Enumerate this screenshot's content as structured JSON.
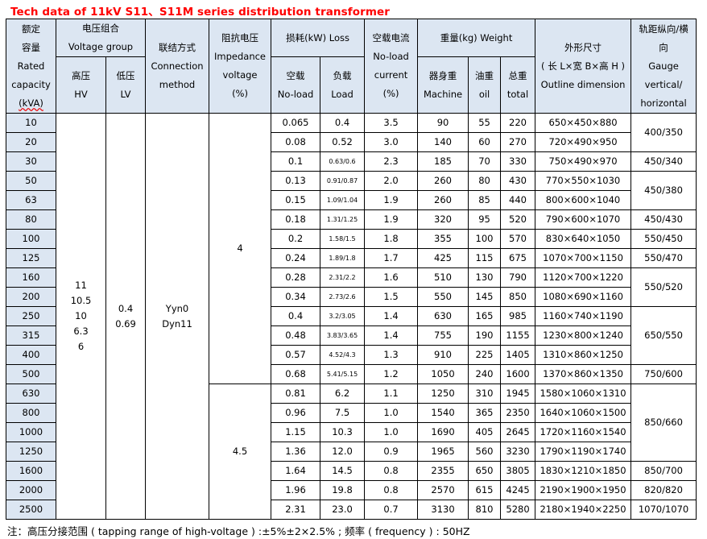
{
  "title": "Tech data of 11kV S11、S11M series distribution transformer",
  "header": {
    "capacity": [
      "额定",
      "容量",
      "Rated",
      "capacity",
      "(kVA)"
    ],
    "voltage_group": [
      "电压组合",
      "Voltage group"
    ],
    "hv": [
      "高压",
      "HV"
    ],
    "lv": [
      "低压",
      "LV"
    ],
    "connection": [
      "联结方式",
      "Connection",
      "method"
    ],
    "impedance": [
      "阻抗电压",
      "Impedance",
      "voltage",
      "(%)"
    ],
    "loss": [
      "损耗(kW) Loss"
    ],
    "noload_loss": [
      "空载",
      "No-load"
    ],
    "load_loss": [
      "负载",
      "Load"
    ],
    "noload_current": [
      "空载电流",
      "No-load",
      "current",
      "(%)"
    ],
    "weight": [
      "重量(kg) Weight"
    ],
    "machine": [
      "器身重",
      "Machine"
    ],
    "oil": [
      "油重",
      "oil"
    ],
    "total": [
      "总重",
      "total"
    ],
    "outline": [
      "外形尺寸",
      "( 长 L×宽 B×高 H )",
      "Outline dimension"
    ],
    "gauge": [
      "轨距纵向/横",
      "向",
      "Gauge",
      "vertical/",
      "horizontal"
    ]
  },
  "merged": {
    "hv": [
      "11",
      "10.5",
      "10",
      "6.3",
      "6"
    ],
    "lv": [
      "0.4",
      "0.69"
    ],
    "connection": [
      "Yyn0",
      "Dyn11"
    ],
    "impedance": [
      {
        "span": 14,
        "value": "4"
      },
      {
        "span": 7,
        "value": "4.5"
      }
    ],
    "gauge": [
      {
        "span": 2,
        "value": "400/350"
      },
      {
        "span": 1,
        "value": "450/340"
      },
      {
        "span": 2,
        "value": "450/380"
      },
      {
        "span": 1,
        "value": "450/430"
      },
      {
        "span": 1,
        "value": "550/450"
      },
      {
        "span": 1,
        "value": "550/470"
      },
      {
        "span": 2,
        "value": "550/520"
      },
      {
        "span": 3,
        "value": "650/550"
      },
      {
        "span": 1,
        "value": "750/600"
      },
      {
        "span": 4,
        "value": "850/660"
      },
      {
        "span": 1,
        "value": "850/700"
      },
      {
        "span": 1,
        "value": "820/820"
      },
      {
        "span": 1,
        "value": "1070/1070"
      }
    ]
  },
  "rows": [
    [
      "10",
      "0.065",
      "0.4",
      "3.5",
      "90",
      "55",
      "220",
      "650×450×880"
    ],
    [
      "20",
      "0.08",
      "0.52",
      "3.0",
      "140",
      "60",
      "270",
      "720×490×950"
    ],
    [
      "30",
      "0.1",
      "0.63/0.6",
      "2.3",
      "185",
      "70",
      "330",
      "750×490×970"
    ],
    [
      "50",
      "0.13",
      "0.91/0.87",
      "2.0",
      "260",
      "80",
      "430",
      "770×550×1030"
    ],
    [
      "63",
      "0.15",
      "1.09/1.04",
      "1.9",
      "260",
      "85",
      "440",
      "800×600×1040"
    ],
    [
      "80",
      "0.18",
      "1.31/1.25",
      "1.9",
      "320",
      "95",
      "520",
      "790×600×1070"
    ],
    [
      "100",
      "0.2",
      "1.58/1.5",
      "1.8",
      "355",
      "100",
      "570",
      "830×640×1050"
    ],
    [
      "125",
      "0.24",
      "1.89/1.8",
      "1.7",
      "425",
      "115",
      "675",
      "1070×700×1150"
    ],
    [
      "160",
      "0.28",
      "2.31/2.2",
      "1.6",
      "510",
      "130",
      "790",
      "1120×700×1220"
    ],
    [
      "200",
      "0.34",
      "2.73/2.6",
      "1.5",
      "550",
      "145",
      "850",
      "1080×690×1160"
    ],
    [
      "250",
      "0.4",
      "3.2/3.05",
      "1.4",
      "630",
      "165",
      "985",
      "1160×740×1190"
    ],
    [
      "315",
      "0.48",
      "3.83/3.65",
      "1.4",
      "755",
      "190",
      "1155",
      "1230×800×1240"
    ],
    [
      "400",
      "0.57",
      "4.52/4.3",
      "1.3",
      "910",
      "225",
      "1405",
      "1310×860×1250"
    ],
    [
      "500",
      "0.68",
      "5.41/5.15",
      "1.2",
      "1050",
      "240",
      "1600",
      "1370×860×1350"
    ],
    [
      "630",
      "0.81",
      "6.2",
      "1.1",
      "1250",
      "310",
      "1945",
      "1580×1060×1310"
    ],
    [
      "800",
      "0.96",
      "7.5",
      "1.0",
      "1540",
      "365",
      "2350",
      "1640×1060×1500"
    ],
    [
      "1000",
      "1.15",
      "10.3",
      "1.0",
      "1690",
      "405",
      "2645",
      "1720×1160×1540"
    ],
    [
      "1250",
      "1.36",
      "12.0",
      "0.9",
      "1965",
      "560",
      "3230",
      "1790×1190×1740"
    ],
    [
      "1600",
      "1.64",
      "14.5",
      "0.8",
      "2355",
      "650",
      "3805",
      "1830×1210×1850"
    ],
    [
      "2000",
      "1.96",
      "19.8",
      "0.8",
      "2570",
      "615",
      "4245",
      "2190×1900×1950"
    ],
    [
      "2500",
      "2.31",
      "23.0",
      "0.7",
      "3130",
      "810",
      "5280",
      "2180×1940×2250"
    ]
  ],
  "footer": "注：高压分接范围 ( tapping range of high-voltage ) :±5%±2×2.5% ; 频率 ( frequency ) : 50HZ",
  "colors": {
    "title": "#ff0000",
    "header_bg": "#dce6f2"
  }
}
